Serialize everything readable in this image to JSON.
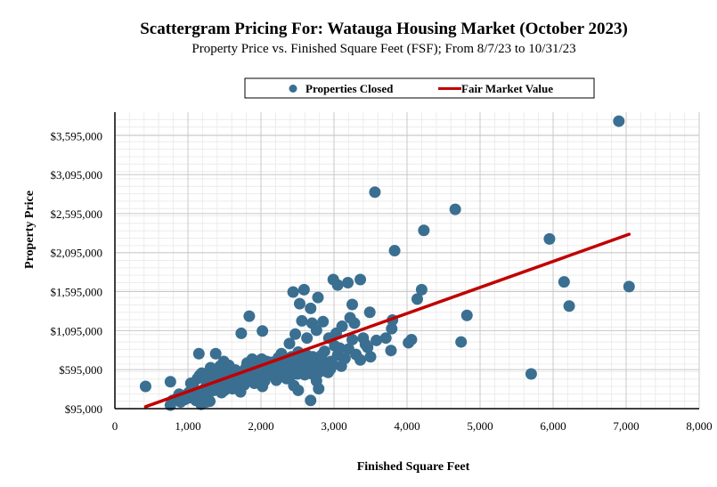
{
  "chart_data": {
    "type": "scatter",
    "title": "Scattergram Pricing For: Watauga Housing Market (October 2023)",
    "subtitle": "Property Price vs. Finished Square Feet (FSF); From 8/7/23 to 10/31/23",
    "xlabel": "Finished Square Feet",
    "ylabel": "Property Price",
    "xlim": [
      0,
      8000
    ],
    "ylim": [
      95000,
      3895000
    ],
    "x_ticks": [
      0,
      1000,
      2000,
      3000,
      4000,
      5000,
      6000,
      7000,
      8000
    ],
    "x_tick_labels": [
      "0",
      "1,000",
      "2,000",
      "3,000",
      "4,000",
      "5,000",
      "6,000",
      "7,000",
      "8,000"
    ],
    "y_ticks": [
      95000,
      595000,
      1095000,
      1595000,
      2095000,
      2595000,
      3095000,
      3595000
    ],
    "y_tick_labels": [
      "$95,000",
      "$595,000",
      "$1,095,000",
      "$1,595,000",
      "$2,095,000",
      "$2,595,000",
      "$3,095,000",
      "$3,595,000"
    ],
    "grid": true,
    "legend_position": "top-center",
    "legend": [
      "Properties Closed",
      "Fair Market Value"
    ],
    "colors": {
      "points": "#3a6f91",
      "fmv_line": "#c00000",
      "grid": "#c8c8c8"
    },
    "series": [
      {
        "name": "Properties Closed",
        "kind": "scatter",
        "points": [
          [
            420,
            380000
          ],
          [
            760,
            440000
          ],
          [
            760,
            140000
          ],
          [
            790,
            200000
          ],
          [
            850,
            230000
          ],
          [
            900,
            180000
          ],
          [
            960,
            260000
          ],
          [
            1010,
            300000
          ],
          [
            1060,
            350000
          ],
          [
            1110,
            300000
          ],
          [
            1160,
            520000
          ],
          [
            1210,
            260000
          ],
          [
            1260,
            420000
          ],
          [
            1300,
            190000
          ],
          [
            1360,
            330000
          ],
          [
            1420,
            460000
          ],
          [
            1460,
            300000
          ],
          [
            1510,
            520000
          ],
          [
            1560,
            430000
          ],
          [
            1610,
            350000
          ],
          [
            1660,
            580000
          ],
          [
            1700,
            460000
          ],
          [
            1760,
            520000
          ],
          [
            1810,
            680000
          ],
          [
            1860,
            560000
          ],
          [
            1910,
            420000
          ],
          [
            1960,
            470000
          ],
          [
            2010,
            730000
          ],
          [
            2060,
            600000
          ],
          [
            2110,
            530000
          ],
          [
            2160,
            690000
          ],
          [
            2210,
            460000
          ],
          [
            2260,
            570000
          ],
          [
            2310,
            750000
          ],
          [
            2360,
            610000
          ],
          [
            2410,
            520000
          ],
          [
            2460,
            660000
          ],
          [
            2510,
            820000
          ],
          [
            2560,
            580000
          ],
          [
            2610,
            700000
          ],
          [
            2660,
            660000
          ],
          [
            2710,
            760000
          ],
          [
            2760,
            450000
          ],
          [
            2820,
            620000
          ],
          [
            2870,
            830000
          ],
          [
            2920,
            560000
          ],
          [
            2960,
            700000
          ],
          [
            3010,
            900000
          ],
          [
            1150,
            800000
          ],
          [
            1310,
            620000
          ],
          [
            1380,
            800000
          ],
          [
            1490,
            700000
          ],
          [
            1560,
            650000
          ],
          [
            1650,
            590000
          ],
          [
            1720,
            500000
          ],
          [
            1790,
            610000
          ],
          [
            1850,
            640000
          ],
          [
            1940,
            550000
          ],
          [
            2040,
            490000
          ],
          [
            2130,
            640000
          ],
          [
            2200,
            600000
          ],
          [
            2280,
            660000
          ],
          [
            2340,
            540000
          ],
          [
            2380,
            690000
          ],
          [
            2440,
            610000
          ],
          [
            2480,
            560000
          ],
          [
            2540,
            700000
          ],
          [
            2600,
            530000
          ],
          [
            2680,
            590000
          ],
          [
            2740,
            690000
          ],
          [
            2790,
            560000
          ],
          [
            2850,
            700000
          ],
          [
            2900,
            650000
          ],
          [
            2950,
            600000
          ],
          [
            3050,
            780000
          ],
          [
            3100,
            640000
          ],
          [
            3150,
            740000
          ],
          [
            3200,
            860000
          ],
          [
            3250,
            980000
          ],
          [
            3300,
            790000
          ],
          [
            3360,
            720000
          ],
          [
            3400,
            1000000
          ],
          [
            3460,
            880000
          ],
          [
            3500,
            760000
          ],
          [
            1070,
            400000
          ],
          [
            1130,
            480000
          ],
          [
            1190,
            550000
          ],
          [
            1240,
            360000
          ],
          [
            1290,
            480000
          ],
          [
            1340,
            560000
          ],
          [
            1400,
            380000
          ],
          [
            1440,
            640000
          ],
          [
            1540,
            580000
          ],
          [
            1590,
            470000
          ],
          [
            1630,
            510000
          ],
          [
            1680,
            380000
          ],
          [
            1740,
            560000
          ],
          [
            1830,
            480000
          ],
          [
            1880,
            730000
          ],
          [
            1970,
            630000
          ],
          [
            2020,
            380000
          ],
          [
            2080,
            700000
          ],
          [
            2180,
            560000
          ],
          [
            2240,
            750000
          ],
          [
            2300,
            620000
          ],
          [
            2420,
            760000
          ],
          [
            2500,
            540000
          ],
          [
            2570,
            620000
          ],
          [
            2630,
            780000
          ],
          [
            2700,
            540000
          ],
          [
            2770,
            640000
          ],
          [
            2830,
            780000
          ],
          [
            2980,
            660000
          ],
          [
            3080,
            870000
          ],
          [
            1000,
            230000
          ],
          [
            880,
            280000
          ],
          [
            950,
            210000
          ],
          [
            1040,
            420000
          ],
          [
            1100,
            260000
          ],
          [
            1200,
            330000
          ],
          [
            1270,
            250000
          ],
          [
            1330,
            410000
          ],
          [
            1470,
            520000
          ],
          [
            1520,
            360000
          ],
          [
            1620,
            440000
          ],
          [
            1770,
            400000
          ],
          [
            1920,
            560000
          ],
          [
            2050,
            450000
          ],
          [
            2120,
            530000
          ],
          [
            2350,
            480000
          ],
          [
            2450,
            390000
          ],
          [
            2510,
            330000
          ],
          [
            2680,
            200000
          ],
          [
            2790,
            350000
          ],
          [
            2900,
            570000
          ],
          [
            1180,
            150000
          ],
          [
            1250,
            180000
          ],
          [
            1110,
            200000
          ],
          [
            1500,
            330000
          ],
          [
            1720,
            310000
          ],
          [
            2280,
            800000
          ],
          [
            2390,
            930000
          ],
          [
            2470,
            1050000
          ],
          [
            2560,
            1220000
          ],
          [
            2630,
            1000000
          ],
          [
            2700,
            1190000
          ],
          [
            2760,
            1100000
          ],
          [
            2850,
            1210000
          ],
          [
            2930,
            1000000
          ],
          [
            3030,
            1060000
          ],
          [
            3110,
            1150000
          ],
          [
            3220,
            1260000
          ],
          [
            3280,
            1190000
          ],
          [
            3430,
            920000
          ],
          [
            1730,
            1060000
          ],
          [
            1840,
            1280000
          ],
          [
            2020,
            1090000
          ],
          [
            2530,
            1440000
          ],
          [
            2590,
            1620000
          ],
          [
            2440,
            1590000
          ],
          [
            2680,
            1380000
          ],
          [
            2780,
            1520000
          ],
          [
            2990,
            1750000
          ],
          [
            3050,
            1680000
          ],
          [
            3190,
            1710000
          ],
          [
            3250,
            1430000
          ],
          [
            3360,
            1750000
          ],
          [
            3490,
            1330000
          ],
          [
            3580,
            970000
          ],
          [
            3710,
            1000000
          ],
          [
            3800,
            1230000
          ],
          [
            3790,
            1120000
          ],
          [
            3780,
            840000
          ],
          [
            4020,
            940000
          ],
          [
            4060,
            980000
          ],
          [
            4140,
            1500000
          ],
          [
            4200,
            1620000
          ],
          [
            4230,
            2380000
          ],
          [
            3830,
            2120000
          ],
          [
            4660,
            2650000
          ],
          [
            4740,
            950000
          ],
          [
            4820,
            1290000
          ],
          [
            3560,
            2870000
          ],
          [
            5700,
            540000
          ],
          [
            5950,
            2270000
          ],
          [
            6150,
            1720000
          ],
          [
            6220,
            1410000
          ],
          [
            6900,
            3780000
          ],
          [
            7040,
            1660000
          ]
        ]
      },
      {
        "name": "Fair Market Value",
        "kind": "line",
        "points": [
          [
            420,
            120000
          ],
          [
            7040,
            2330000
          ]
        ]
      }
    ]
  }
}
